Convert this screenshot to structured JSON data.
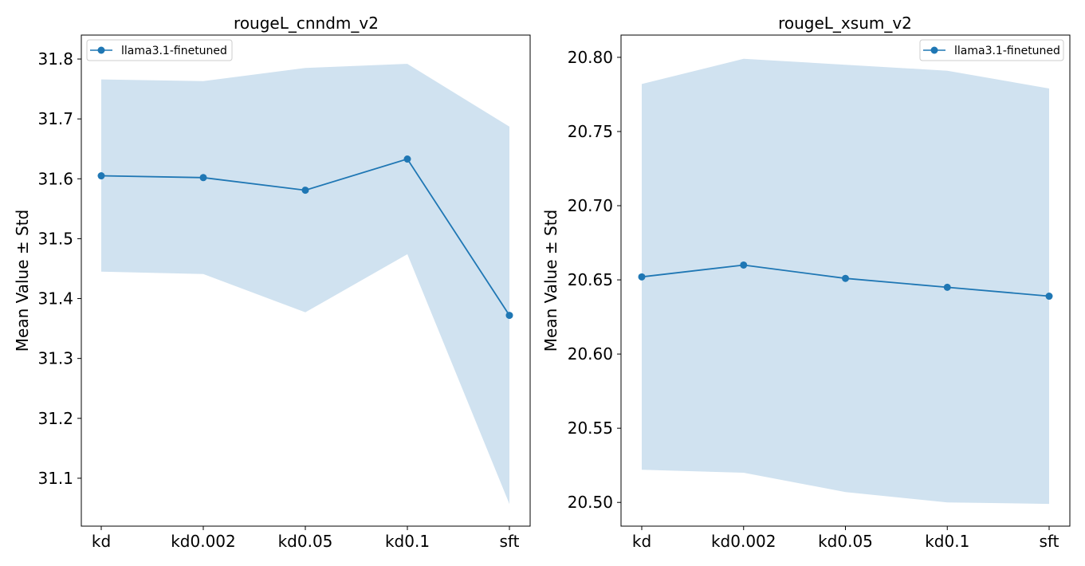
{
  "chart_data": [
    {
      "type": "line",
      "title": "rougeL_cnndm_v2",
      "xlabel": "",
      "ylabel": "Mean Value ± Std",
      "categories": [
        "kd",
        "kd0.002",
        "kd0.05",
        "kd0.1",
        "sft"
      ],
      "ylim": [
        31.02,
        31.84
      ],
      "yticks": [
        "31.1",
        "31.2",
        "31.3",
        "31.4",
        "31.5",
        "31.6",
        "31.7",
        "31.8"
      ],
      "legend_position": "upper-left",
      "grid": false,
      "series": [
        {
          "name": "llama3.1-finetuned",
          "color": "#1f77b4",
          "band_color": "#d0e2f0",
          "values": [
            31.605,
            31.602,
            31.581,
            31.633,
            31.372
          ],
          "upper": [
            31.766,
            31.763,
            31.785,
            31.792,
            31.687
          ],
          "lower": [
            31.445,
            31.441,
            31.377,
            31.474,
            31.057
          ]
        }
      ]
    },
    {
      "type": "line",
      "title": "rougeL_xsum_v2",
      "xlabel": "",
      "ylabel": "Mean Value ± Std",
      "categories": [
        "kd",
        "kd0.002",
        "kd0.05",
        "kd0.1",
        "sft"
      ],
      "ylim": [
        20.484,
        20.815
      ],
      "yticks": [
        "20.50",
        "20.55",
        "20.60",
        "20.65",
        "20.70",
        "20.75",
        "20.80"
      ],
      "legend_position": "upper-right",
      "grid": false,
      "series": [
        {
          "name": "llama3.1-finetuned",
          "color": "#1f77b4",
          "band_color": "#d0e2f0",
          "values": [
            20.652,
            20.66,
            20.651,
            20.645,
            20.639
          ],
          "upper": [
            20.782,
            20.799,
            20.795,
            20.791,
            20.779
          ],
          "lower": [
            20.522,
            20.52,
            20.507,
            20.5,
            20.499
          ]
        }
      ]
    }
  ]
}
